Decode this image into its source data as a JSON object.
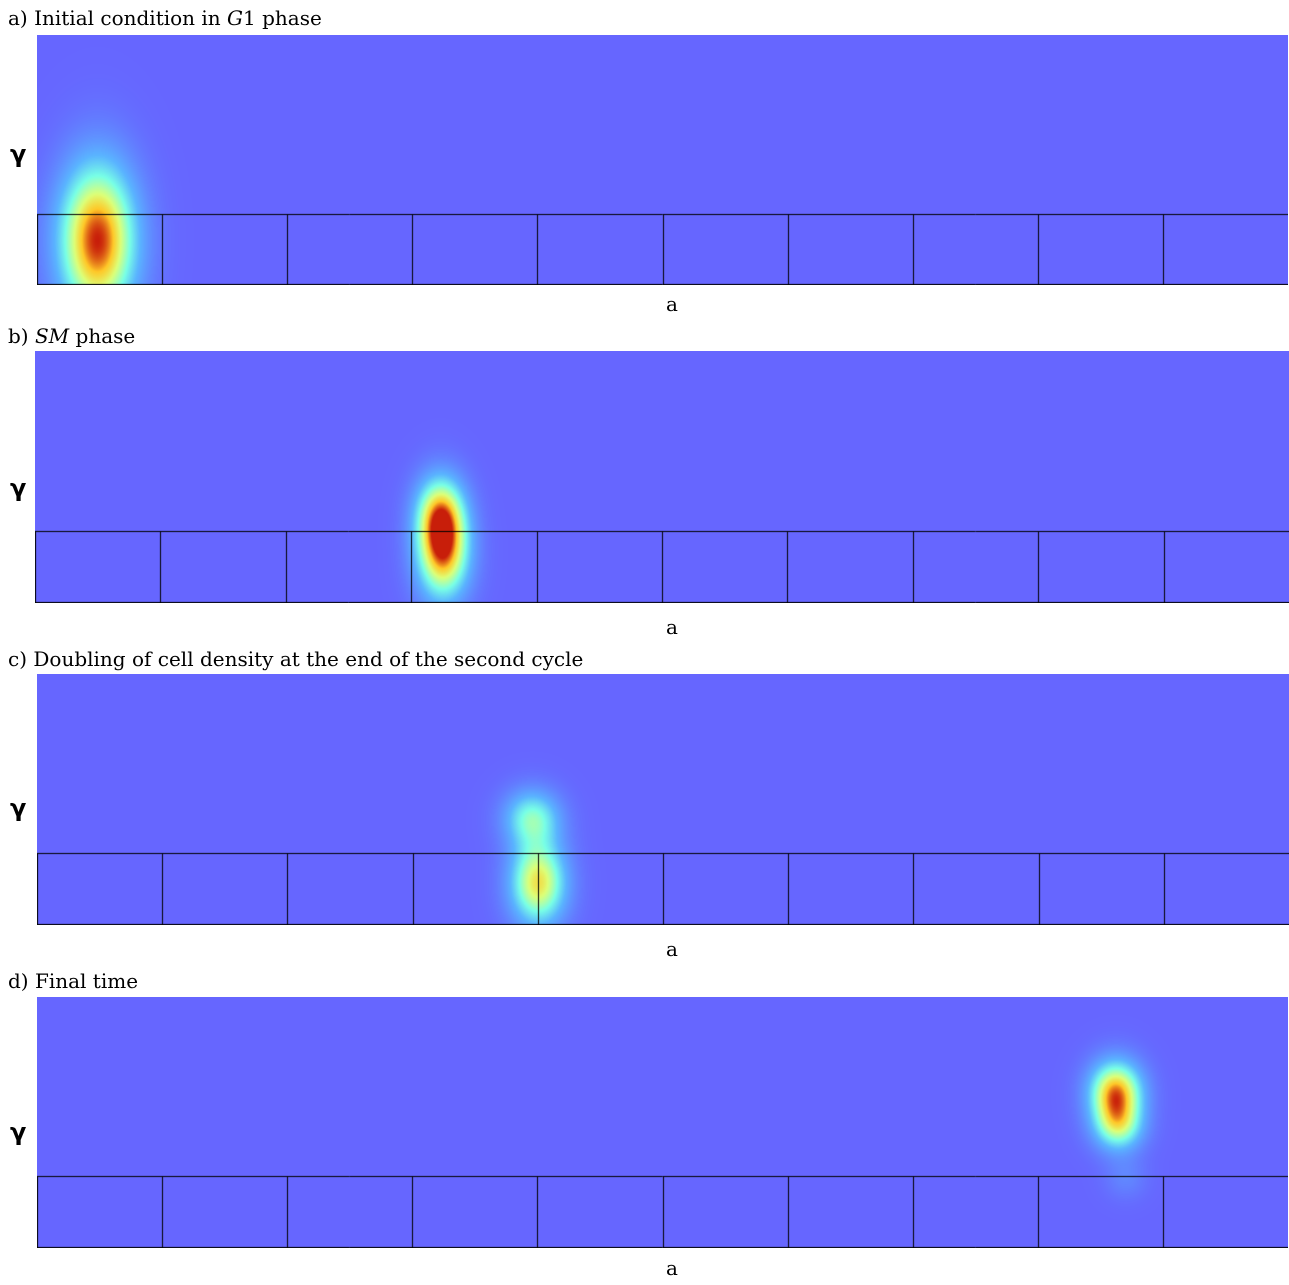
{
  "colors": {
    "background_field": "#6666ff",
    "grid_lines": "#000000"
  },
  "panels": [
    {
      "id": "a",
      "title_prefix": "a) Initial condition in ",
      "title_math": "G",
      "title_suffix": "1 phase",
      "ylabel": "γ",
      "xlabel": "a",
      "grid_cells": 10,
      "blobs": [
        {
          "a": 0.048,
          "g": 0.82,
          "sx": 0.022,
          "sy": 0.22,
          "amp": 1.0
        }
      ]
    },
    {
      "id": "b",
      "title_prefix": "b) ",
      "title_math": "SM",
      "title_suffix": " phase",
      "ylabel": "γ",
      "xlabel": "a",
      "grid_cells": 10,
      "blobs": [
        {
          "a": 0.323,
          "g": 0.64,
          "sx": 0.014,
          "sy": 0.11,
          "amp": 0.7
        },
        {
          "a": 0.325,
          "g": 0.81,
          "sx": 0.015,
          "sy": 0.13,
          "amp": 0.82
        }
      ]
    },
    {
      "id": "c",
      "title_prefix": "c) Doubling of cell density at the end of the second cycle",
      "title_math": "",
      "title_suffix": "",
      "ylabel": "γ",
      "xlabel": "a",
      "grid_cells": 10,
      "blobs": [
        {
          "a": 0.395,
          "g": 0.57,
          "sx": 0.016,
          "sy": 0.08,
          "amp": 0.5
        },
        {
          "a": 0.4,
          "g": 0.83,
          "sx": 0.016,
          "sy": 0.12,
          "amp": 0.78
        }
      ]
    },
    {
      "id": "d",
      "title_prefix": "d) Final time",
      "title_math": "",
      "title_suffix": "",
      "ylabel": "γ",
      "xlabel": "a",
      "grid_cells": 10,
      "blobs": [
        {
          "a": 0.862,
          "g": 0.38,
          "sx": 0.015,
          "sy": 0.09,
          "amp": 0.9
        },
        {
          "a": 0.864,
          "g": 0.52,
          "sx": 0.014,
          "sy": 0.07,
          "amp": 0.5
        },
        {
          "a": 0.87,
          "g": 0.72,
          "sx": 0.012,
          "sy": 0.06,
          "amp": 0.12
        }
      ]
    }
  ]
}
